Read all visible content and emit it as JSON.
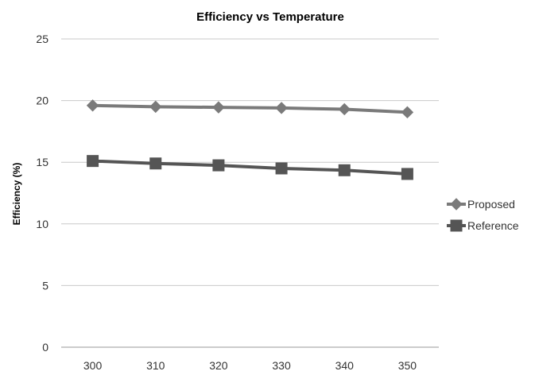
{
  "chart_data": {
    "type": "line",
    "title": "Efficiency vs Temperature",
    "xlabel": "",
    "ylabel": "Efficiency (%)",
    "x": [
      300,
      310,
      320,
      330,
      340,
      350
    ],
    "ylim": [
      0,
      25
    ],
    "yticks": [
      0,
      5,
      10,
      15,
      20,
      25
    ],
    "grid": true,
    "legend_position": "right",
    "series": [
      {
        "name": "Proposed",
        "marker": "diamond",
        "color": "#7a7a7a",
        "values": [
          19.6,
          19.5,
          19.45,
          19.4,
          19.3,
          19.05
        ]
      },
      {
        "name": "Reference",
        "marker": "square",
        "color": "#555555",
        "values": [
          15.1,
          14.9,
          14.75,
          14.5,
          14.35,
          14.05
        ]
      }
    ]
  }
}
